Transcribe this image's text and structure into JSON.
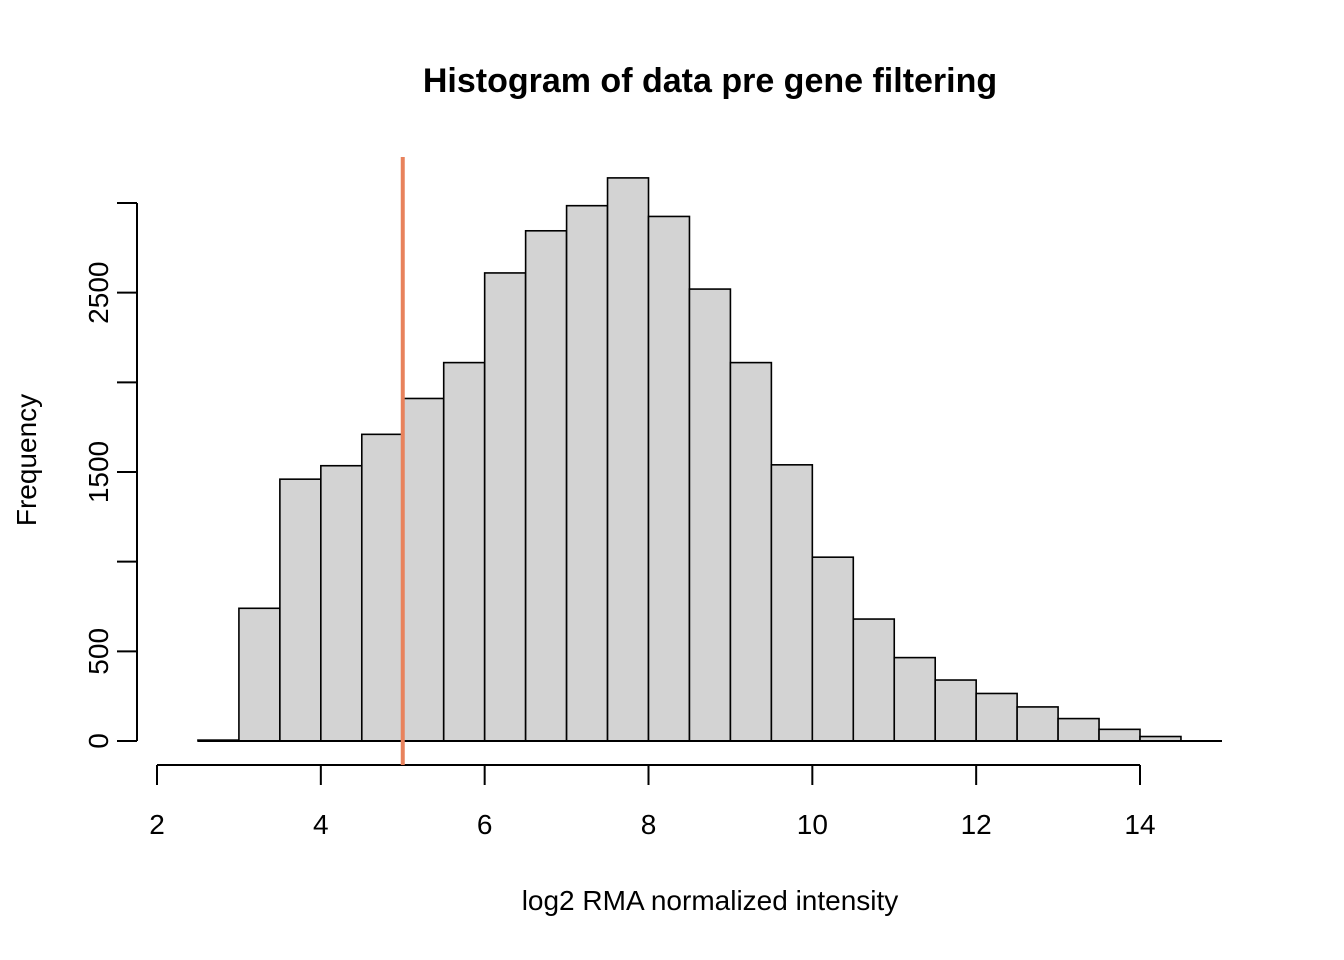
{
  "chart_data": {
    "type": "bar",
    "title": "Histogram of data pre gene filtering",
    "xlabel": "log2 RMA normalized intensity",
    "ylabel": "Frequency",
    "xlim": [
      2,
      15
    ],
    "ylim": [
      0,
      3250
    ],
    "x_ticks": [
      2,
      4,
      6,
      8,
      10,
      12,
      14
    ],
    "y_ticks": [
      0,
      500,
      1000,
      1500,
      2000,
      2500,
      3000
    ],
    "y_tick_labels_shown": [
      "0",
      "500",
      "1500",
      "2500"
    ],
    "bin_width": 0.5,
    "bins": [
      {
        "start": 2.5,
        "end": 3.0,
        "value": 5
      },
      {
        "start": 3.0,
        "end": 3.5,
        "value": 740
      },
      {
        "start": 3.5,
        "end": 4.0,
        "value": 1460
      },
      {
        "start": 4.0,
        "end": 4.5,
        "value": 1535
      },
      {
        "start": 4.5,
        "end": 5.0,
        "value": 1710
      },
      {
        "start": 5.0,
        "end": 5.5,
        "value": 1910
      },
      {
        "start": 5.5,
        "end": 6.0,
        "value": 2110
      },
      {
        "start": 6.0,
        "end": 6.5,
        "value": 2610
      },
      {
        "start": 6.5,
        "end": 7.0,
        "value": 2845
      },
      {
        "start": 7.0,
        "end": 7.5,
        "value": 2985
      },
      {
        "start": 7.5,
        "end": 8.0,
        "value": 3140
      },
      {
        "start": 8.0,
        "end": 8.5,
        "value": 2925
      },
      {
        "start": 8.5,
        "end": 9.0,
        "value": 2520
      },
      {
        "start": 9.0,
        "end": 9.5,
        "value": 2110
      },
      {
        "start": 9.5,
        "end": 10.0,
        "value": 1540
      },
      {
        "start": 10.0,
        "end": 10.5,
        "value": 1025
      },
      {
        "start": 10.5,
        "end": 11.0,
        "value": 680
      },
      {
        "start": 11.0,
        "end": 11.5,
        "value": 465
      },
      {
        "start": 11.5,
        "end": 12.0,
        "value": 340
      },
      {
        "start": 12.0,
        "end": 12.5,
        "value": 265
      },
      {
        "start": 12.5,
        "end": 13.0,
        "value": 190
      },
      {
        "start": 13.0,
        "end": 13.5,
        "value": 125
      },
      {
        "start": 13.5,
        "end": 14.0,
        "value": 65
      },
      {
        "start": 14.0,
        "end": 14.5,
        "value": 25
      }
    ],
    "threshold_line": {
      "x": 5,
      "color": "#e8825c"
    },
    "bar_fill": "#d3d3d3",
    "grid": false,
    "legend": "none"
  }
}
